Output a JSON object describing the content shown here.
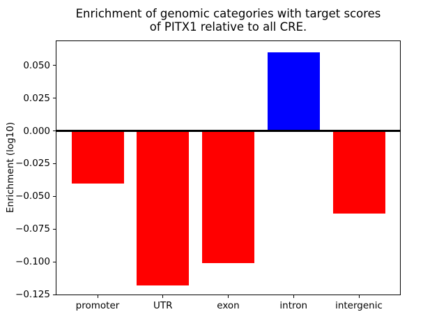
{
  "chart_data": {
    "type": "bar",
    "title": "Enrichment of genomic categories with target scores\nof PITX1 relative to all CRE.",
    "xlabel": "",
    "ylabel": "Enrichment (log10)",
    "categories": [
      "promoter",
      "UTR",
      "exon",
      "intron",
      "intergenic"
    ],
    "values": [
      -0.04,
      -0.118,
      -0.101,
      0.06,
      -0.063
    ],
    "bar_colors": [
      "#ff0000",
      "#ff0000",
      "#ff0000",
      "#0000ff",
      "#ff0000"
    ],
    "negative_color": "#ff0000",
    "positive_color": "#0000ff",
    "yticks": [
      0.05,
      0.025,
      0.0,
      -0.025,
      -0.05,
      -0.075,
      -0.1,
      -0.125
    ],
    "ytick_labels": [
      "0.050",
      "0.025",
      "0.000",
      "−0.025",
      "−0.050",
      "−0.075",
      "−0.100",
      "−0.125"
    ],
    "ylim": [
      -0.1255,
      0.0691
    ],
    "xlim": [
      -0.64,
      4.64
    ],
    "bar_width": 0.8,
    "zero_line": true,
    "grid": false,
    "legend": "none",
    "axis_color": "#000000",
    "background_color": "#ffffff"
  }
}
